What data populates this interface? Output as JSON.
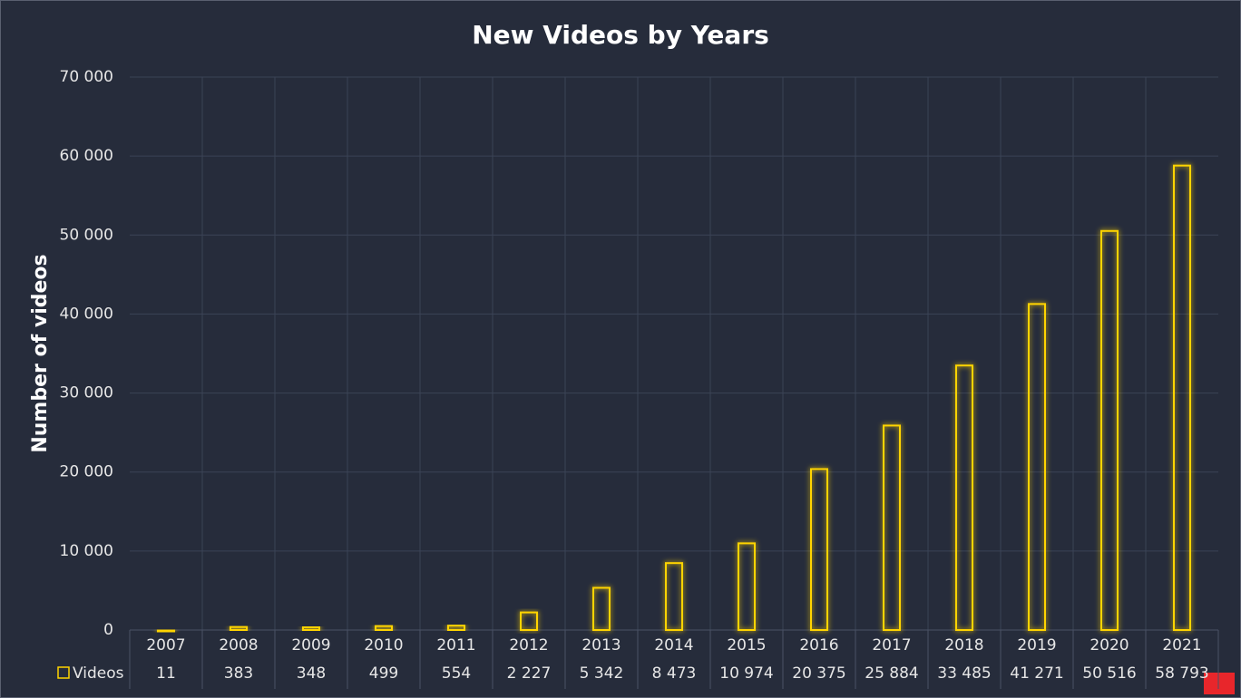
{
  "chart_data": {
    "type": "bar",
    "title": "New Videos by Years",
    "y_label": "Number of videos",
    "categories": [
      "2007",
      "2008",
      "2009",
      "2010",
      "2011",
      "2012",
      "2013",
      "2014",
      "2015",
      "2016",
      "2017",
      "2018",
      "2019",
      "2020",
      "2021"
    ],
    "series": [
      {
        "name": "Videos",
        "color": "#ffd400",
        "values": [
          11,
          383,
          348,
          499,
          554,
          2227,
          5342,
          8473,
          10974,
          20375,
          25884,
          33485,
          41271,
          50516,
          58793
        ],
        "value_labels": [
          "11",
          "383",
          "348",
          "499",
          "554",
          "2 227",
          "5 342",
          "8 473",
          "10 974",
          "20 375",
          "25 884",
          "33 485",
          "41 271",
          "50 516",
          "58 793"
        ]
      }
    ],
    "ylim": [
      0,
      70000
    ],
    "yticks": [
      0,
      {
        "value": 10000,
        "label": "10 000"
      },
      {
        "value": 20000,
        "label": "20 000"
      },
      {
        "value": 30000,
        "label": "30 000"
      },
      {
        "value": 40000,
        "label": "40 000"
      },
      {
        "value": 50000,
        "label": "50 000"
      },
      {
        "value": 60000,
        "label": "60 000"
      },
      {
        "value": 70000,
        "label": "70 000"
      }
    ],
    "grid": true
  }
}
